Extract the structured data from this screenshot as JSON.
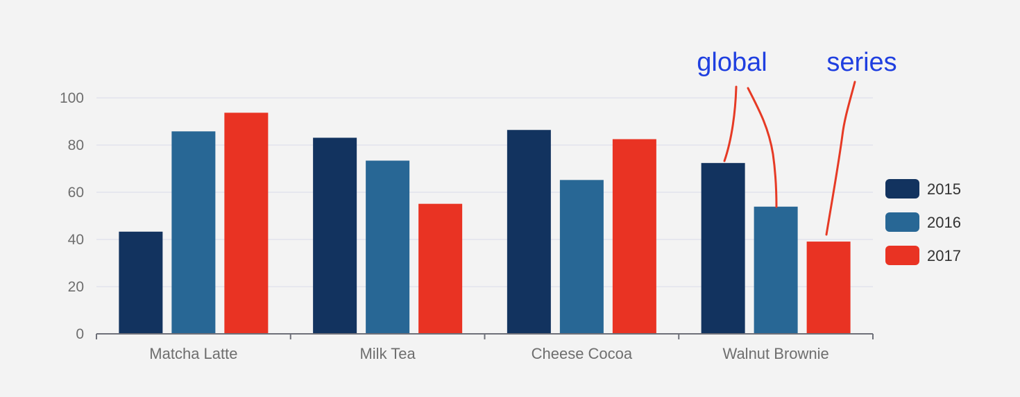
{
  "chart_data": {
    "type": "bar",
    "categories": [
      "Matcha Latte",
      "Milk Tea",
      "Cheese Cocoa",
      "Walnut Brownie"
    ],
    "series": [
      {
        "name": "2015",
        "values": [
          43.3,
          83.1,
          86.4,
          72.4
        ],
        "color": "#12335f"
      },
      {
        "name": "2016",
        "values": [
          85.8,
          73.4,
          65.2,
          53.9
        ],
        "color": "#286795"
      },
      {
        "name": "2017",
        "values": [
          93.7,
          55.1,
          82.5,
          39.1
        ],
        "color": "#e93323"
      }
    ],
    "ylim": [
      0,
      100
    ],
    "yticks": [
      0,
      20,
      40,
      60,
      80,
      100
    ],
    "grid": true,
    "legend_position": "right",
    "title": "",
    "xlabel": "",
    "ylabel": "",
    "annotations": [
      {
        "text": "global"
      },
      {
        "text": "series"
      }
    ]
  }
}
